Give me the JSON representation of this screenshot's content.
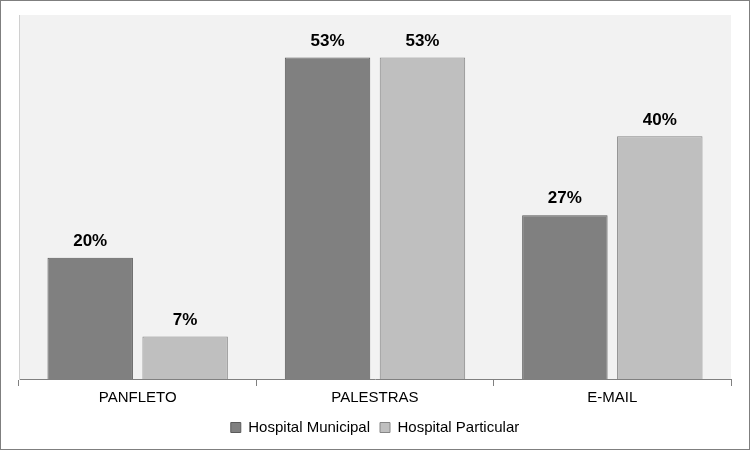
{
  "chart_data": {
    "type": "bar",
    "categories": [
      "PANFLETO",
      "PALESTRAS",
      "E-MAIL"
    ],
    "series": [
      {
        "name": "Hospital Municipal",
        "color": "#808080",
        "values": [
          20,
          53,
          27
        ],
        "value_labels": [
          "20%",
          "53%",
          "27%"
        ]
      },
      {
        "name": "Hospital Particular",
        "color": "#bfbfbf",
        "values": [
          7,
          53,
          40
        ],
        "value_labels": [
          "7%",
          "53%",
          "40%"
        ]
      }
    ],
    "ylim": [
      0,
      60
    ],
    "grid": false,
    "legend": "bottom",
    "data_labels": true,
    "tick_labels": "x"
  }
}
